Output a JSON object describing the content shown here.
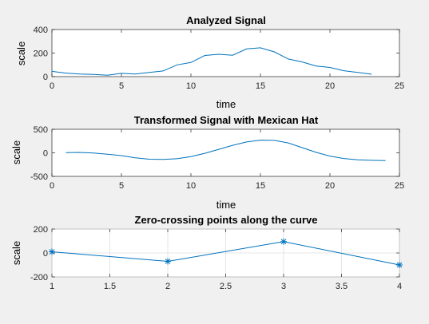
{
  "chart_data": [
    {
      "type": "line",
      "title": "Analyzed Signal",
      "xlabel": "time",
      "ylabel": "scale",
      "xlim": [
        0,
        25
      ],
      "ylim": [
        0,
        400
      ],
      "xticks": [
        0,
        5,
        10,
        15,
        20,
        25
      ],
      "yticks": [
        0,
        200,
        400
      ],
      "grid": false,
      "markers": false,
      "series": [
        {
          "x": [
            0,
            1,
            2,
            3,
            4,
            5,
            6,
            7,
            8,
            9,
            10,
            11,
            12,
            13,
            14,
            15,
            16,
            17,
            18,
            19,
            20,
            21,
            22,
            23
          ],
          "values": [
            45,
            30,
            22,
            18,
            12,
            28,
            22,
            35,
            48,
            100,
            120,
            180,
            190,
            182,
            235,
            245,
            210,
            150,
            125,
            90,
            78,
            50,
            35,
            20
          ]
        }
      ]
    },
    {
      "type": "line",
      "title": "Transformed Signal with Mexican Hat",
      "xlabel": "time",
      "ylabel": "scale",
      "xlim": [
        0,
        25
      ],
      "ylim": [
        -500,
        500
      ],
      "xticks": [
        0,
        5,
        10,
        15,
        20,
        25
      ],
      "yticks": [
        -500,
        0,
        500
      ],
      "grid": false,
      "markers": false,
      "series": [
        {
          "x": [
            1,
            2,
            3,
            4,
            5,
            6,
            7,
            8,
            9,
            10,
            11,
            12,
            13,
            14,
            15,
            16,
            17,
            18,
            19,
            20,
            21,
            22,
            23,
            24
          ],
          "values": [
            5,
            8,
            -5,
            -30,
            -60,
            -105,
            -135,
            -140,
            -125,
            -80,
            -10,
            75,
            160,
            230,
            270,
            265,
            210,
            110,
            10,
            -70,
            -120,
            -150,
            -160,
            -165
          ]
        }
      ]
    },
    {
      "type": "line",
      "title": "Zero-crossing points along the curve",
      "xlabel": "",
      "ylabel": "scale",
      "xlim": [
        1,
        4
      ],
      "ylim": [
        -200,
        200
      ],
      "xticks": [
        1,
        1.5,
        2,
        2.5,
        3,
        3.5,
        4
      ],
      "yticks": [
        -200,
        0,
        200
      ],
      "grid": true,
      "markers": true,
      "series": [
        {
          "x": [
            1,
            2,
            3,
            4
          ],
          "values": [
            10,
            -70,
            95,
            -100
          ]
        }
      ]
    }
  ],
  "colors": {
    "line": "#0072bd",
    "background": "#f0f0f0",
    "axes_bg": "#ffffff",
    "axes_edge": "#262626",
    "grid": "#dfdfdf"
  }
}
